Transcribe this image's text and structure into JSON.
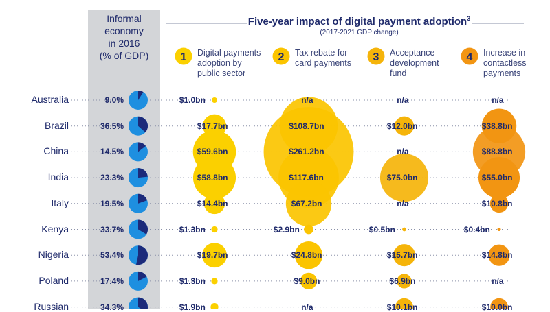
{
  "header": {
    "informal_title": [
      "Informal",
      "economy",
      "in 2016",
      "(% of GDP)"
    ],
    "main_title": "Five-year impact of digital payment adoption",
    "main_title_sup": "3",
    "subtitle": "(2017-2021 GDP change)"
  },
  "scenarios": [
    {
      "number": "1",
      "lines": [
        "Digital payments",
        "adoption by",
        "public sector"
      ],
      "color": "#fbd000"
    },
    {
      "number": "2",
      "lines": [
        "Tax rebate for",
        "card payments"
      ],
      "color": "#fbc400"
    },
    {
      "number": "3",
      "lines": [
        "Acceptance",
        "development",
        "fund"
      ],
      "color": "#f5b40a"
    },
    {
      "number": "4",
      "lines": [
        "Increase in",
        "contactless",
        "payments"
      ],
      "color": "#f29512"
    }
  ],
  "colors": {
    "band": "#d3d5d8",
    "pie_light": "#1e8fe0",
    "pie_dark": "#1c2a7a",
    "text": "#1f2a6b",
    "leader": "#8a90a8",
    "bubble_1": "#fbd000",
    "bubble_2": "#fbc400",
    "bubble_3": "#f5b40a",
    "bubble_4": "#f29512"
  },
  "chart_data": {
    "type": "bubble-table",
    "rows": [
      {
        "country": "Australia",
        "informal_pct": 9.0,
        "informal_label": "9.0%",
        "values": [
          1.0,
          null,
          null,
          null
        ],
        "labels": [
          "$1.0bn",
          "n/a",
          "n/a",
          "n/a"
        ]
      },
      {
        "country": "Brazil",
        "informal_pct": 36.5,
        "informal_label": "36.5%",
        "values": [
          17.7,
          108.7,
          12.0,
          38.8
        ],
        "labels": [
          "$17.7bn",
          "$108.7bn",
          "$12.0bn",
          "$38.8bn"
        ]
      },
      {
        "country": "China",
        "informal_pct": 14.5,
        "informal_label": "14.5%",
        "values": [
          59.6,
          261.2,
          null,
          88.8
        ],
        "labels": [
          "$59.6bn",
          "$261.2bn",
          "n/a",
          "$88.8bn"
        ]
      },
      {
        "country": "India",
        "informal_pct": 23.3,
        "informal_label": "23.3%",
        "values": [
          58.8,
          117.6,
          75.0,
          55.0
        ],
        "labels": [
          "$58.8bn",
          "$117.6bn",
          "$75.0bn",
          "$55.0bn"
        ]
      },
      {
        "country": "Italy",
        "informal_pct": 19.5,
        "informal_label": "19.5%",
        "values": [
          14.4,
          67.2,
          null,
          10.8
        ],
        "labels": [
          "$14.4bn",
          "$67.2bn",
          "n/a",
          "$10.8bn"
        ]
      },
      {
        "country": "Kenya",
        "informal_pct": 33.7,
        "informal_label": "33.7%",
        "values": [
          1.3,
          2.9,
          0.5,
          0.4
        ],
        "labels": [
          "$1.3bn",
          "$2.9bn",
          "$0.5bn",
          "$0.4bn"
        ]
      },
      {
        "country": "Nigeria",
        "informal_pct": 53.4,
        "informal_label": "53.4%",
        "values": [
          19.7,
          24.8,
          15.7,
          14.8
        ],
        "labels": [
          "$19.7bn",
          "$24.8bn",
          "$15.7bn",
          "$14.8bn"
        ]
      },
      {
        "country": "Poland",
        "informal_pct": 17.4,
        "informal_label": "17.4%",
        "values": [
          1.3,
          9.0,
          6.9,
          null
        ],
        "labels": [
          "$1.3bn",
          "$9.0bn",
          "$6.9bn",
          "n/a"
        ]
      },
      {
        "country": "Russian",
        "informal_pct": 34.3,
        "informal_label": "34.3%",
        "values": [
          1.9,
          null,
          10.1,
          10.0
        ],
        "labels": [
          "$1.9bn",
          "n/a",
          "$10.1bn",
          "$10.0bn"
        ]
      }
    ]
  }
}
